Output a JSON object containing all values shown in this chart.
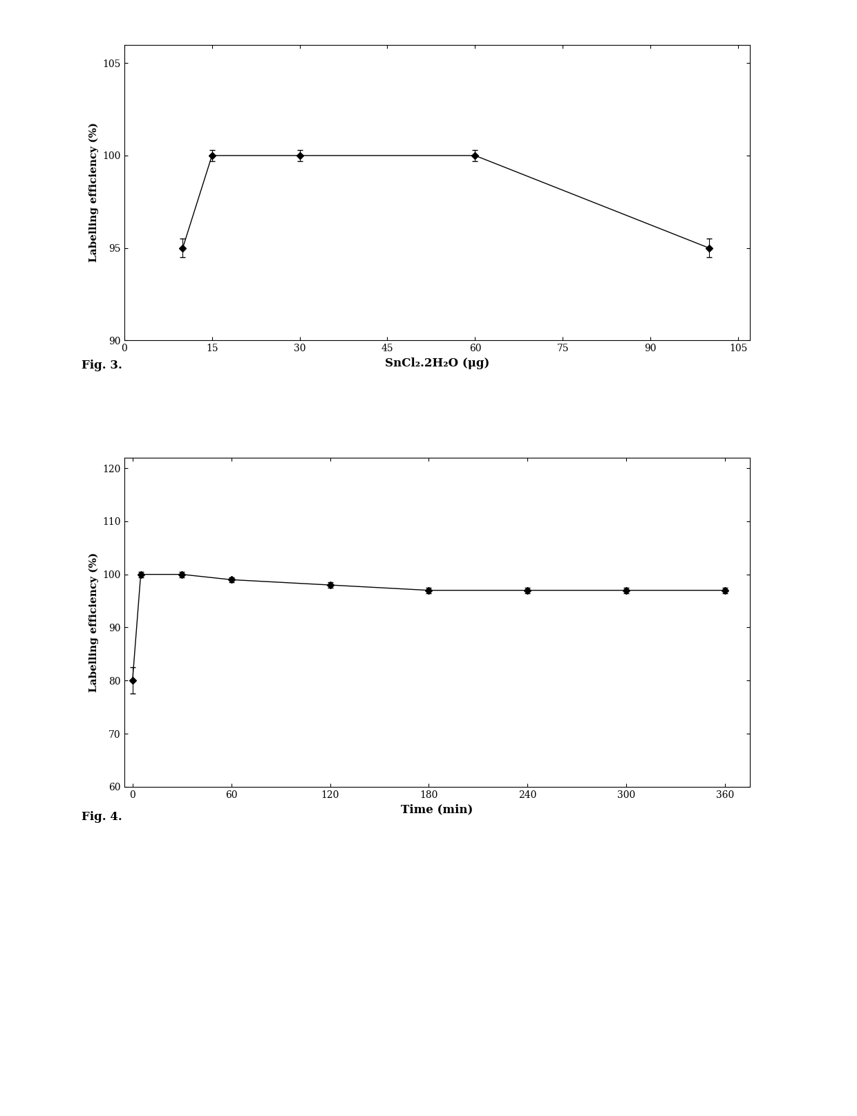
{
  "fig3": {
    "x": [
      10,
      15,
      30,
      60,
      100
    ],
    "y": [
      95.0,
      100.0,
      100.0,
      100.0,
      95.0
    ],
    "yerr": [
      0.5,
      0.3,
      0.3,
      0.3,
      0.5
    ],
    "xlabel": "SnCl₂.2H₂O (μg)",
    "ylabel": "Labelling efficiency (%)",
    "xlim": [
      0,
      107
    ],
    "ylim": [
      90,
      106
    ],
    "xticks": [
      0,
      15,
      30,
      45,
      60,
      75,
      90,
      105
    ],
    "yticks": [
      90,
      95,
      100,
      105
    ],
    "fig_label": "Fig. 3."
  },
  "fig4": {
    "x": [
      0,
      5,
      30,
      60,
      120,
      180,
      240,
      300,
      360
    ],
    "y": [
      80.0,
      100.0,
      100.0,
      99.0,
      98.0,
      97.0,
      97.0,
      97.0,
      97.0
    ],
    "yerr": [
      2.5,
      0.5,
      0.5,
      0.5,
      0.5,
      0.5,
      0.5,
      0.5,
      0.5
    ],
    "xlabel": "Time (min)",
    "ylabel": "Labelling efficiency (%)",
    "xlim": [
      -5,
      375
    ],
    "ylim": [
      60,
      122
    ],
    "xticks": [
      0,
      60,
      120,
      180,
      240,
      300,
      360
    ],
    "yticks": [
      60,
      70,
      80,
      90,
      100,
      110,
      120
    ],
    "fig_label": "Fig. 4."
  },
  "line_color": "#000000",
  "marker": "D",
  "markersize": 5,
  "linewidth": 1.0,
  "background_color": "#ffffff",
  "font_family": "serif"
}
